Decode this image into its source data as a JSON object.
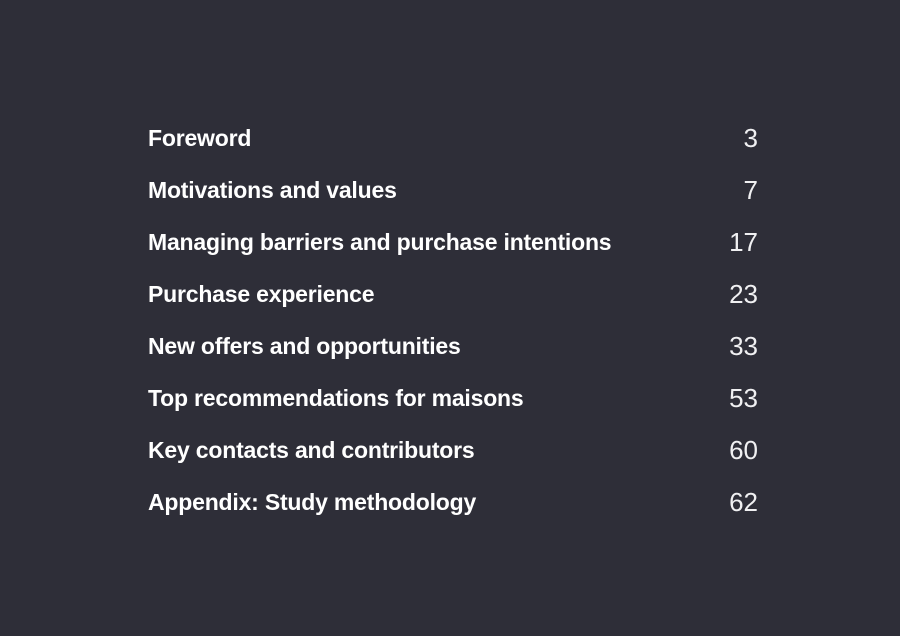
{
  "page": {
    "background_color": "#2e2e38",
    "title_text_color": "#ffffff",
    "page_number_color": "#f0f0f2"
  },
  "toc": {
    "items": [
      {
        "label": "Foreword",
        "page": "3"
      },
      {
        "label": "Motivations and values",
        "page": "7"
      },
      {
        "label": "Managing barriers and purchase intentions",
        "page": "17"
      },
      {
        "label": "Purchase experience",
        "page": "23"
      },
      {
        "label": "New offers and opportunities",
        "page": "33"
      },
      {
        "label": "Top recommendations for maisons",
        "page": "53"
      },
      {
        "label": "Key contacts and contributors",
        "page": "60"
      },
      {
        "label": "Appendix: Study methodology",
        "page": "62"
      }
    ]
  }
}
